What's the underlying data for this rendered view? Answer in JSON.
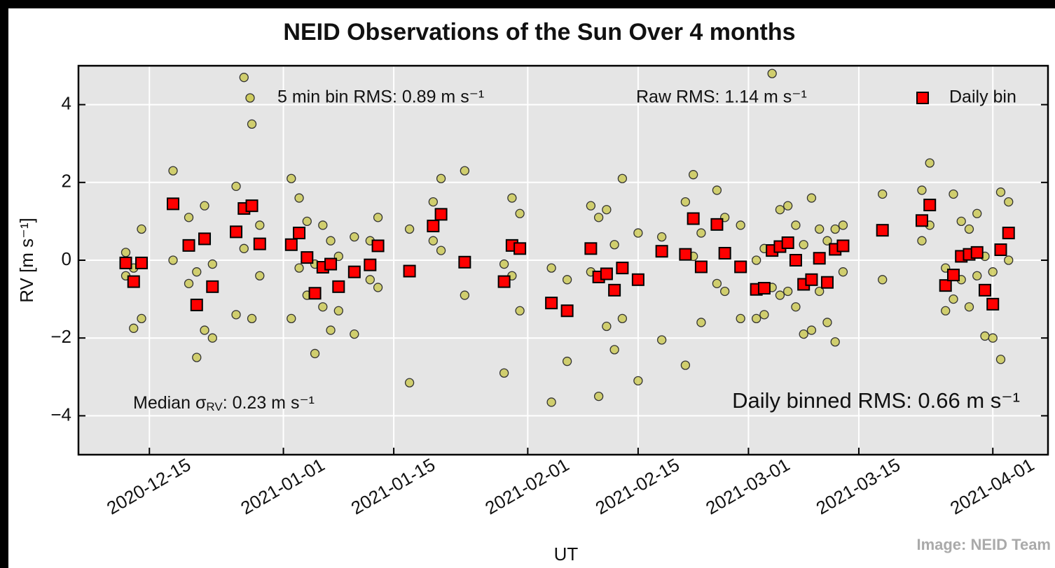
{
  "chart_data": {
    "type": "scatter",
    "title": "NEID Observations of the Sun Over 4 months",
    "x_label": "UT",
    "y_label": "RV [m s⁻¹]",
    "xlim": [
      "2020-12-06",
      "2021-04-08"
    ],
    "ylim": [
      -5,
      5
    ],
    "xticks": [
      "2020-12-15",
      "2021-01-01",
      "2021-01-15",
      "2021-02-01",
      "2021-02-15",
      "2021-03-01",
      "2021-03-15",
      "2021-04-01"
    ],
    "yticks": [
      {
        "value": -4,
        "label": "−4"
      },
      {
        "value": -2,
        "label": "−2"
      },
      0,
      2,
      4
    ],
    "grid": true,
    "annotations": {
      "raw_rms": "Raw RMS: 1.14 m s⁻¹",
      "daily_rms": "Daily binned RMS: 0.66 m s⁻¹",
      "median_prefix": "Median σ",
      "median_sub": "RV",
      "median_suffix": ": 0.23 m s⁻¹",
      "credit": "Image: NEID Team"
    },
    "series": [
      {
        "name": "5 min bin RMS: 0.89 m s⁻¹",
        "marker": "circle",
        "color": "#c8c43c",
        "x": [
          "2020-12-12",
          "2020-12-12",
          "2020-12-13",
          "2020-12-13",
          "2020-12-14",
          "2020-12-14",
          "2020-12-18",
          "2020-12-18",
          "2020-12-20",
          "2020-12-20",
          "2020-12-21",
          "2020-12-21",
          "2020-12-22",
          "2020-12-22",
          "2020-12-23",
          "2020-12-23",
          "2020-12-26",
          "2020-12-26",
          "2020-12-27",
          "2020-12-27",
          "2020-12-28",
          "2020-12-28",
          "2020-12-29",
          "2020-12-29",
          "2021-01-02",
          "2021-01-02",
          "2021-01-03",
          "2021-01-03",
          "2021-01-04",
          "2021-01-04",
          "2021-01-05",
          "2021-01-05",
          "2021-01-06",
          "2021-01-06",
          "2021-01-07",
          "2021-01-07",
          "2021-01-08",
          "2021-01-08",
          "2021-01-10",
          "2021-01-10",
          "2021-01-12",
          "2021-01-12",
          "2021-01-13",
          "2021-01-13",
          "2021-01-17",
          "2021-01-17",
          "2021-01-20",
          "2021-01-20",
          "2021-01-21",
          "2021-01-21",
          "2021-01-24",
          "2021-01-24",
          "2021-01-29",
          "2021-01-29",
          "2021-01-30",
          "2021-01-30",
          "2021-01-31",
          "2021-01-31",
          "2021-02-04",
          "2021-02-04",
          "2021-02-06",
          "2021-02-06",
          "2021-02-09",
          "2021-02-09",
          "2021-02-10",
          "2021-02-10",
          "2021-02-11",
          "2021-02-11",
          "2021-02-12",
          "2021-02-12",
          "2021-02-13",
          "2021-02-13",
          "2021-02-15",
          "2021-02-15",
          "2021-02-18",
          "2021-02-18",
          "2021-02-21",
          "2021-02-21",
          "2021-02-22",
          "2021-02-22",
          "2021-02-23",
          "2021-02-23",
          "2021-02-25",
          "2021-02-25",
          "2021-02-26",
          "2021-02-26",
          "2021-02-28",
          "2021-02-28",
          "2021-03-02",
          "2021-03-02",
          "2021-03-03",
          "2021-03-03",
          "2021-03-04",
          "2021-03-04",
          "2021-03-05",
          "2021-03-05",
          "2021-03-06",
          "2021-03-06",
          "2021-03-07",
          "2021-03-07",
          "2021-03-08",
          "2021-03-08",
          "2021-03-09",
          "2021-03-09",
          "2021-03-10",
          "2021-03-10",
          "2021-03-11",
          "2021-03-11",
          "2021-03-12",
          "2021-03-12",
          "2021-03-13",
          "2021-03-13",
          "2021-03-18",
          "2021-03-18",
          "2021-03-23",
          "2021-03-23",
          "2021-03-24",
          "2021-03-24",
          "2021-03-26",
          "2021-03-26",
          "2021-03-27",
          "2021-03-27",
          "2021-03-28",
          "2021-03-28",
          "2021-03-29",
          "2021-03-29",
          "2021-03-30",
          "2021-03-30",
          "2021-03-31",
          "2021-03-31",
          "2021-04-01",
          "2021-04-01",
          "2021-04-02",
          "2021-04-02",
          "2021-04-03",
          "2021-04-03"
        ],
        "values": [
          -0.4,
          0.2,
          -1.75,
          -0.2,
          -1.5,
          0.8,
          0.0,
          2.3,
          -0.6,
          1.1,
          -2.5,
          -0.3,
          -1.8,
          1.4,
          -2.0,
          -0.1,
          -1.4,
          1.9,
          0.3,
          4.7,
          -1.5,
          3.5,
          -0.4,
          0.9,
          -1.5,
          2.1,
          -0.2,
          1.6,
          -0.9,
          1.0,
          -2.4,
          -0.1,
          -1.2,
          0.9,
          -1.8,
          0.5,
          -1.3,
          0.1,
          -1.9,
          0.6,
          -0.5,
          0.5,
          -0.7,
          1.1,
          -3.15,
          0.8,
          0.5,
          1.5,
          0.25,
          2.1,
          -0.9,
          2.3,
          -2.9,
          -0.1,
          -0.4,
          1.6,
          -1.3,
          1.2,
          -3.65,
          -0.2,
          -2.6,
          -0.5,
          -0.3,
          1.4,
          -3.5,
          1.1,
          -1.7,
          1.3,
          -2.3,
          0.4,
          -1.5,
          2.1,
          -3.1,
          0.7,
          -2.05,
          0.6,
          -2.7,
          1.5,
          0.1,
          2.2,
          -1.6,
          0.7,
          -0.6,
          1.8,
          -0.8,
          1.1,
          -1.5,
          0.9,
          -1.5,
          0.0,
          -1.4,
          0.3,
          -0.7,
          4.8,
          -0.9,
          1.3,
          -0.8,
          1.4,
          -1.2,
          0.9,
          -1.9,
          0.4,
          -1.8,
          1.6,
          -0.8,
          0.8,
          -1.6,
          0.5,
          -2.1,
          0.8,
          -0.3,
          0.9,
          -0.5,
          1.7,
          0.5,
          1.8,
          0.9,
          2.5,
          -1.3,
          -0.2,
          -1.0,
          1.7,
          -0.5,
          1.0,
          -1.2,
          0.8,
          -0.4,
          1.2,
          -1.95,
          0.1,
          -2.0,
          -0.3,
          -2.55,
          1.75,
          0.0,
          1.5
        ]
      },
      {
        "name": "Daily bin",
        "marker": "square",
        "color": "#ff0000",
        "x": [
          "2020-12-12",
          "2020-12-13",
          "2020-12-14",
          "2020-12-18",
          "2020-12-20",
          "2020-12-21",
          "2020-12-22",
          "2020-12-23",
          "2020-12-26",
          "2020-12-27",
          "2020-12-28",
          "2020-12-29",
          "2021-01-02",
          "2021-01-03",
          "2021-01-04",
          "2021-01-05",
          "2021-01-06",
          "2021-01-07",
          "2021-01-08",
          "2021-01-10",
          "2021-01-12",
          "2021-01-13",
          "2021-01-17",
          "2021-01-20",
          "2021-01-21",
          "2021-01-24",
          "2021-01-29",
          "2021-01-30",
          "2021-01-31",
          "2021-02-04",
          "2021-02-06",
          "2021-02-09",
          "2021-02-10",
          "2021-02-11",
          "2021-02-12",
          "2021-02-13",
          "2021-02-15",
          "2021-02-18",
          "2021-02-21",
          "2021-02-22",
          "2021-02-23",
          "2021-02-25",
          "2021-02-26",
          "2021-02-28",
          "2021-03-02",
          "2021-03-03",
          "2021-03-04",
          "2021-03-05",
          "2021-03-06",
          "2021-03-07",
          "2021-03-08",
          "2021-03-09",
          "2021-03-10",
          "2021-03-11",
          "2021-03-12",
          "2021-03-13",
          "2021-03-18",
          "2021-03-23",
          "2021-03-24",
          "2021-03-26",
          "2021-03-27",
          "2021-03-28",
          "2021-03-29",
          "2021-03-30",
          "2021-03-31",
          "2021-04-01",
          "2021-04-02",
          "2021-04-03"
        ],
        "values": [
          -0.07,
          -0.55,
          -0.07,
          1.45,
          0.38,
          -1.15,
          0.55,
          -0.68,
          0.73,
          1.33,
          1.4,
          0.42,
          0.4,
          0.7,
          0.07,
          -0.85,
          -0.18,
          -0.1,
          -0.68,
          -0.3,
          -0.12,
          0.37,
          -0.28,
          0.88,
          1.18,
          -0.05,
          -0.55,
          0.38,
          0.3,
          -1.1,
          -1.3,
          0.3,
          -0.43,
          -0.35,
          -0.77,
          -0.2,
          -0.5,
          0.23,
          0.15,
          1.07,
          -0.17,
          0.92,
          0.18,
          -0.17,
          -0.75,
          -0.72,
          0.25,
          0.35,
          0.45,
          0.0,
          -0.62,
          -0.5,
          0.05,
          -0.57,
          0.28,
          0.37,
          0.77,
          1.02,
          1.42,
          -0.65,
          -0.38,
          0.1,
          0.15,
          0.2,
          -0.77,
          -1.13,
          0.27,
          0.7
        ]
      }
    ]
  }
}
